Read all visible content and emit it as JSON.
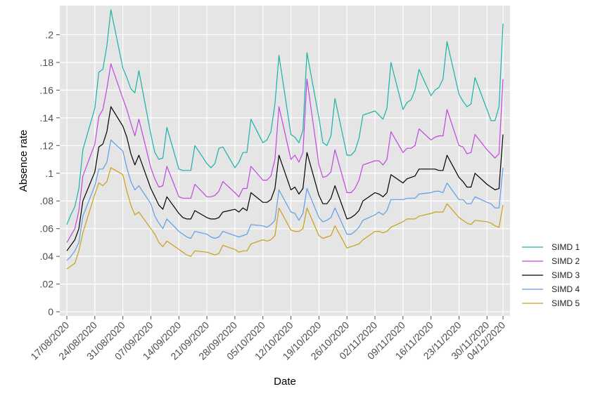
{
  "chart_data": {
    "type": "line",
    "xlabel": "Date",
    "ylabel": "Absence rate",
    "ylim": [
      -0.003,
      0.221
    ],
    "yticks": [
      0,
      0.02,
      0.04,
      0.06,
      0.08,
      0.1,
      0.12,
      0.14,
      0.16,
      0.18,
      0.2
    ],
    "ytick_labels": [
      "0",
      ".02",
      ".04",
      ".06",
      ".08",
      ".1",
      ".12",
      ".14",
      ".16",
      ".18",
      ".2"
    ],
    "xticks": [
      "17/08/2020",
      "24/08/2020",
      "31/08/2020",
      "07/09/2020",
      "14/09/2020",
      "21/09/2020",
      "28/09/2020",
      "05/10/2020",
      "12/10/2020",
      "19/10/2020",
      "26/10/2020",
      "02/11/2020",
      "09/11/2020",
      "16/11/2020",
      "23/11/2020",
      "30/11/2020",
      "04/12/2020"
    ],
    "x": [
      "17/08/2020",
      "18/08/2020",
      "19/08/2020",
      "20/08/2020",
      "21/08/2020",
      "24/08/2020",
      "25/08/2020",
      "26/08/2020",
      "27/08/2020",
      "28/08/2020",
      "31/08/2020",
      "01/09/2020",
      "02/09/2020",
      "03/09/2020",
      "04/09/2020",
      "07/09/2020",
      "08/09/2020",
      "09/09/2020",
      "10/09/2020",
      "11/09/2020",
      "14/09/2020",
      "15/09/2020",
      "16/09/2020",
      "17/09/2020",
      "18/09/2020",
      "21/09/2020",
      "22/09/2020",
      "23/09/2020",
      "24/09/2020",
      "25/09/2020",
      "28/09/2020",
      "29/09/2020",
      "30/09/2020",
      "01/10/2020",
      "02/10/2020",
      "05/10/2020",
      "06/10/2020",
      "07/10/2020",
      "08/10/2020",
      "09/10/2020",
      "12/10/2020",
      "13/10/2020",
      "14/10/2020",
      "15/10/2020",
      "16/10/2020",
      "19/10/2020",
      "20/10/2020",
      "21/10/2020",
      "22/10/2020",
      "23/10/2020",
      "26/10/2020",
      "27/10/2020",
      "28/10/2020",
      "29/10/2020",
      "30/10/2020",
      "02/11/2020",
      "03/11/2020",
      "04/11/2020",
      "05/11/2020",
      "06/11/2020",
      "09/11/2020",
      "10/11/2020",
      "11/11/2020",
      "12/11/2020",
      "13/11/2020",
      "16/11/2020",
      "17/11/2020",
      "18/11/2020",
      "19/11/2020",
      "20/11/2020",
      "23/11/2020",
      "24/11/2020",
      "25/11/2020",
      "26/11/2020",
      "27/11/2020",
      "30/11/2020",
      "01/12/2020",
      "02/12/2020",
      "03/12/2020",
      "04/12/2020"
    ],
    "legend_position": "right",
    "series": [
      {
        "name": "SIMD 1",
        "color": "#17b3a6",
        "values": [
          0.063,
          0.07,
          0.076,
          0.089,
          0.117,
          0.147,
          0.173,
          0.175,
          0.192,
          0.218,
          0.176,
          0.169,
          0.161,
          0.158,
          0.174,
          0.128,
          0.115,
          0.11,
          0.111,
          0.133,
          0.103,
          0.102,
          0.102,
          0.102,
          0.12,
          0.107,
          0.104,
          0.107,
          0.118,
          0.119,
          0.104,
          0.108,
          0.115,
          0.115,
          0.139,
          0.122,
          0.124,
          0.13,
          0.15,
          0.185,
          0.128,
          0.126,
          0.122,
          0.131,
          0.187,
          0.14,
          0.122,
          0.12,
          0.127,
          0.154,
          0.113,
          0.113,
          0.116,
          0.125,
          0.142,
          0.145,
          0.142,
          0.139,
          0.147,
          0.18,
          0.146,
          0.151,
          0.153,
          0.16,
          0.175,
          0.156,
          0.16,
          0.162,
          0.168,
          0.195,
          0.157,
          0.152,
          0.148,
          0.15,
          0.169,
          0.146,
          0.138,
          0.138,
          0.148,
          0.208
        ]
      },
      {
        "name": "SIMD 2",
        "color": "#bf47e0",
        "values": [
          0.05,
          0.055,
          0.06,
          0.073,
          0.098,
          0.121,
          0.141,
          0.146,
          0.161,
          0.179,
          0.154,
          0.146,
          0.136,
          0.127,
          0.139,
          0.104,
          0.096,
          0.09,
          0.091,
          0.105,
          0.083,
          0.082,
          0.082,
          0.082,
          0.092,
          0.083,
          0.083,
          0.084,
          0.087,
          0.094,
          0.086,
          0.083,
          0.089,
          0.089,
          0.105,
          0.095,
          0.095,
          0.098,
          0.11,
          0.148,
          0.11,
          0.113,
          0.108,
          0.115,
          0.168,
          0.106,
          0.097,
          0.098,
          0.101,
          0.117,
          0.086,
          0.086,
          0.089,
          0.095,
          0.106,
          0.109,
          0.109,
          0.106,
          0.11,
          0.13,
          0.115,
          0.118,
          0.118,
          0.12,
          0.132,
          0.124,
          0.126,
          0.127,
          0.127,
          0.146,
          0.12,
          0.119,
          0.114,
          0.115,
          0.128,
          0.117,
          0.114,
          0.111,
          0.114,
          0.168
        ]
      },
      {
        "name": "SIMD 3",
        "color": "#000000",
        "values": [
          0.044,
          0.048,
          0.052,
          0.06,
          0.08,
          0.101,
          0.119,
          0.121,
          0.13,
          0.148,
          0.134,
          0.126,
          0.114,
          0.106,
          0.113,
          0.089,
          0.083,
          0.077,
          0.074,
          0.083,
          0.071,
          0.068,
          0.067,
          0.067,
          0.073,
          0.068,
          0.067,
          0.067,
          0.068,
          0.072,
          0.074,
          0.072,
          0.075,
          0.073,
          0.086,
          0.079,
          0.079,
          0.081,
          0.089,
          0.113,
          0.088,
          0.09,
          0.085,
          0.089,
          0.115,
          0.084,
          0.078,
          0.078,
          0.082,
          0.091,
          0.067,
          0.068,
          0.07,
          0.073,
          0.08,
          0.086,
          0.085,
          0.083,
          0.086,
          0.099,
          0.093,
          0.096,
          0.097,
          0.098,
          0.103,
          0.103,
          0.103,
          0.102,
          0.102,
          0.113,
          0.097,
          0.094,
          0.09,
          0.09,
          0.1,
          0.092,
          0.09,
          0.088,
          0.089,
          0.128
        ]
      },
      {
        "name": "SIMD 4",
        "color": "#5e9ee6",
        "values": [
          0.037,
          0.04,
          0.044,
          0.05,
          0.069,
          0.091,
          0.103,
          0.103,
          0.108,
          0.124,
          0.116,
          0.104,
          0.094,
          0.088,
          0.091,
          0.078,
          0.069,
          0.064,
          0.06,
          0.067,
          0.058,
          0.056,
          0.054,
          0.053,
          0.058,
          0.056,
          0.054,
          0.053,
          0.054,
          0.058,
          0.055,
          0.054,
          0.055,
          0.056,
          0.063,
          0.062,
          0.061,
          0.063,
          0.066,
          0.088,
          0.072,
          0.071,
          0.066,
          0.071,
          0.089,
          0.068,
          0.065,
          0.066,
          0.068,
          0.075,
          0.056,
          0.056,
          0.058,
          0.061,
          0.066,
          0.07,
          0.072,
          0.07,
          0.073,
          0.081,
          0.081,
          0.082,
          0.082,
          0.082,
          0.085,
          0.086,
          0.087,
          0.087,
          0.086,
          0.093,
          0.081,
          0.081,
          0.078,
          0.078,
          0.083,
          0.079,
          0.078,
          0.075,
          0.075,
          0.104
        ]
      },
      {
        "name": "SIMD 5",
        "color": "#c9a016",
        "values": [
          0.031,
          0.033,
          0.035,
          0.044,
          0.057,
          0.085,
          0.093,
          0.091,
          0.094,
          0.104,
          0.099,
          0.087,
          0.077,
          0.07,
          0.072,
          0.06,
          0.056,
          0.05,
          0.047,
          0.051,
          0.045,
          0.043,
          0.041,
          0.04,
          0.044,
          0.043,
          0.042,
          0.041,
          0.042,
          0.048,
          0.045,
          0.043,
          0.044,
          0.044,
          0.049,
          0.052,
          0.051,
          0.052,
          0.055,
          0.075,
          0.059,
          0.058,
          0.058,
          0.06,
          0.075,
          0.055,
          0.053,
          0.054,
          0.055,
          0.062,
          0.046,
          0.047,
          0.048,
          0.049,
          0.052,
          0.058,
          0.058,
          0.057,
          0.058,
          0.061,
          0.065,
          0.067,
          0.067,
          0.067,
          0.069,
          0.071,
          0.072,
          0.072,
          0.072,
          0.078,
          0.068,
          0.066,
          0.064,
          0.063,
          0.066,
          0.065,
          0.064,
          0.062,
          0.061,
          0.077
        ]
      }
    ]
  }
}
